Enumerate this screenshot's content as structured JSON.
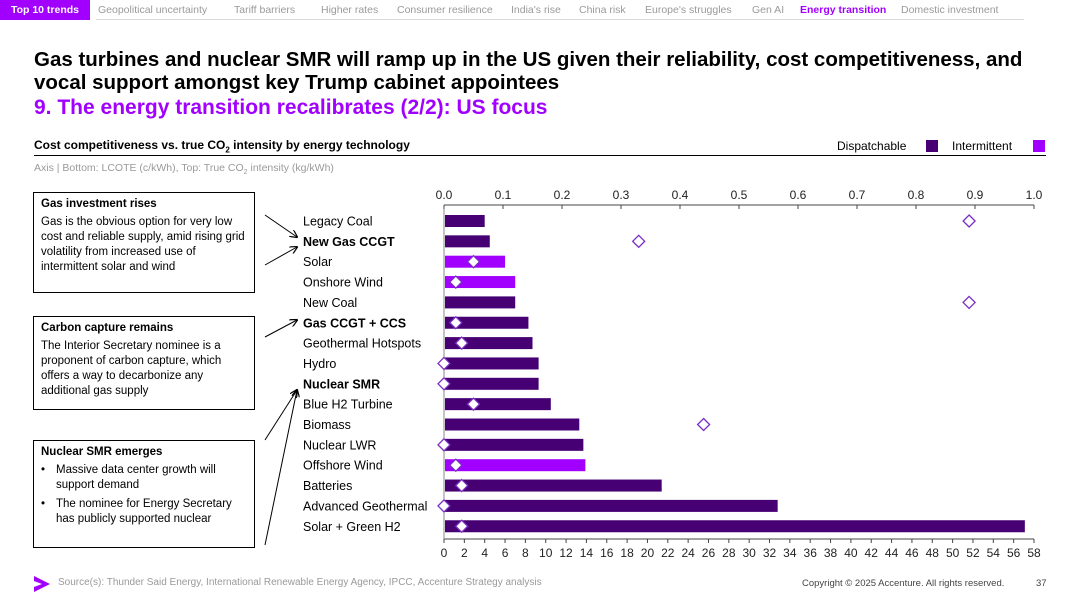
{
  "nav": {
    "tabs": [
      "Top 10 trends",
      "Geopolitical uncertainty",
      "Tariff barriers",
      "Higher rates",
      "Consumer resilience",
      "India's rise",
      "China risk",
      "Europe's struggles",
      "Gen AI",
      "Energy transition",
      "Domestic investment"
    ],
    "active": "Energy transition"
  },
  "title": "Gas turbines and nuclear SMR will ramp up in the US given their reliability, cost competitiveness, and vocal support amongst key Trump cabinet appointees",
  "subtitle": "9. The energy transition recalibrates (2/2): US focus",
  "chart_header": {
    "title_pre": "Cost competitiveness vs. true CO",
    "title_sub": "2",
    "title_post": " intensity by energy technology",
    "axis_note_pre": "Axis | Bottom: LCOTE (c/kWh), Top: True CO",
    "axis_note_sub": "2",
    "axis_note_post": " intensity (kg/kWh)"
  },
  "legend": {
    "dispatchable": "Dispatchable",
    "intermittent": "Intermittent",
    "dispatchable_color": "#460073",
    "intermittent_color": "#a100ff"
  },
  "callouts": {
    "gas": {
      "title": "Gas investment rises",
      "body": "Gas is the obvious option for very low cost and reliable supply, amid rising grid volatility from increased use of intermittent solar and wind"
    },
    "ccs": {
      "title": "Carbon capture remains",
      "body": "The Interior Secretary nominee is a proponent of carbon capture, which offers a way to decarbonize any additional gas supply"
    },
    "smr": {
      "title": "Nuclear SMR emerges",
      "bullets": [
        "Massive data center growth will support demand",
        "The nominee for Energy Secretary has publicly supported nuclear"
      ]
    }
  },
  "chart_data": {
    "type": "bar",
    "orientation": "horizontal",
    "title": "Cost competitiveness vs. true CO2 intensity by energy technology",
    "categories": [
      "Legacy Coal",
      "New Gas CCGT",
      "Solar",
      "Onshore Wind",
      "New Coal",
      "Gas CCGT + CCS",
      "Geothermal Hotspots",
      "Hydro",
      "Nuclear SMR",
      "Blue H2 Turbine",
      "Biomass",
      "Nuclear LWR",
      "Offshore Wind",
      "Batteries",
      "Advanced Geothermal",
      "Solar + Green H2"
    ],
    "bold_categories": [
      "New Gas CCGT",
      "Gas CCGT + CCS",
      "Nuclear SMR"
    ],
    "bar_type": [
      "dispatchable",
      "dispatchable",
      "intermittent",
      "intermittent",
      "dispatchable",
      "dispatchable",
      "dispatchable",
      "dispatchable",
      "dispatchable",
      "dispatchable",
      "dispatchable",
      "dispatchable",
      "intermittent",
      "dispatchable",
      "dispatchable",
      "dispatchable"
    ],
    "lcote_values": [
      4,
      4.5,
      6,
      7,
      7,
      8.3,
      8.7,
      9.3,
      9.3,
      10.5,
      13.3,
      13.7,
      13.9,
      21.4,
      32.8,
      57.1
    ],
    "co2_intensity_values": [
      0.89,
      0.33,
      0.05,
      0.02,
      0.89,
      0.02,
      0.03,
      0.0,
      0.0,
      0.05,
      0.44,
      0.0,
      0.02,
      0.03,
      0.0,
      0.03
    ],
    "bottom_axis": {
      "label": "LCOTE (c/kWh)",
      "range": [
        0,
        58
      ],
      "ticks": [
        0,
        2,
        4,
        6,
        8,
        10,
        12,
        14,
        16,
        18,
        20,
        22,
        24,
        26,
        28,
        30,
        32,
        34,
        36,
        38,
        40,
        42,
        44,
        46,
        48,
        50,
        52,
        54,
        56,
        58
      ]
    },
    "top_axis": {
      "label": "True CO2 intensity (kg/kWh)",
      "range": [
        0,
        1.0
      ],
      "ticks": [
        "0.0",
        "0.1",
        "0.2",
        "0.3",
        "0.4",
        "0.5",
        "0.6",
        "0.7",
        "0.8",
        "0.9",
        "1.0"
      ]
    },
    "series": [
      {
        "name": "Dispatchable",
        "color": "#460073"
      },
      {
        "name": "Intermittent",
        "color": "#a100ff"
      }
    ]
  },
  "footer": {
    "source": "Source(s): Thunder Said Energy, International Renewable Energy Agency, IPCC, Accenture Strategy analysis",
    "copyright": "Copyright © 2025 Accenture. All rights reserved.",
    "page": "37",
    "logo_color": "#a100ff"
  }
}
